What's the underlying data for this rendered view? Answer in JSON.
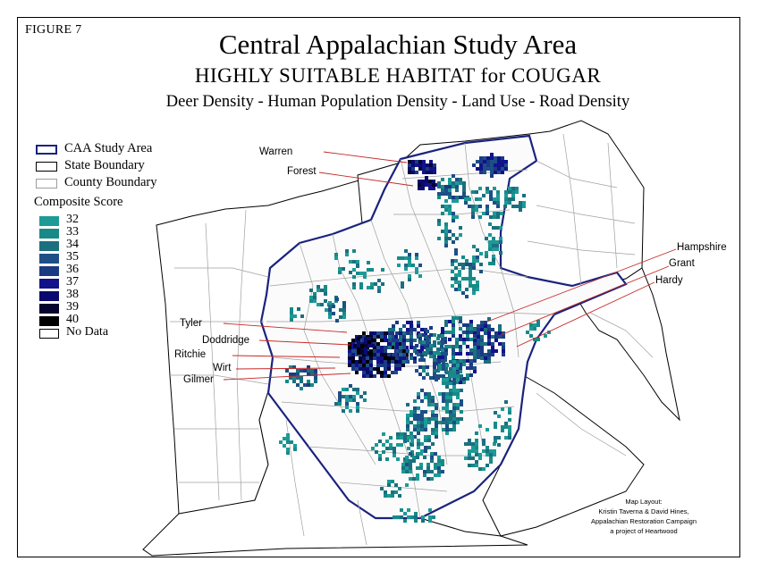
{
  "figure_label": "FIGURE 7",
  "title": "Central Appalachian Study Area",
  "subtitle": "HIGHLY SUITABLE HABITAT for COUGAR",
  "criteria": "Deer Density - Human Population Density - Land Use - Road Density",
  "legend": {
    "boundaries": [
      {
        "label": "CAA Study Area",
        "color": "#1a237e"
      },
      {
        "label": "State Boundary",
        "color": "#000000"
      },
      {
        "label": "County Boundary",
        "color": "#9e9e9e"
      }
    ],
    "score_title": "Composite Score",
    "scores": [
      {
        "label": "32",
        "color": "#1e9a96"
      },
      {
        "label": "33",
        "color": "#178a88"
      },
      {
        "label": "34",
        "color": "#1b6f7e"
      },
      {
        "label": "35",
        "color": "#1d4f86"
      },
      {
        "label": "36",
        "color": "#1a3a82"
      },
      {
        "label": "37",
        "color": "#12128a"
      },
      {
        "label": "38",
        "color": "#0a0a6e"
      },
      {
        "label": "39",
        "color": "#050530"
      },
      {
        "label": "40",
        "color": "#000000"
      }
    ],
    "no_data": {
      "label": "No Data",
      "color": "#ffffff"
    }
  },
  "county_labels": [
    {
      "name": "Warren"
    },
    {
      "name": "Forest"
    },
    {
      "name": "Hampshire"
    },
    {
      "name": "Grant"
    },
    {
      "name": "Hardy"
    },
    {
      "name": "Tyler"
    },
    {
      "name": "Doddridge"
    },
    {
      "name": "Ritchie"
    },
    {
      "name": "Wirt"
    },
    {
      "name": "Gilmer"
    }
  ],
  "credit": {
    "heading": "Map Layout:",
    "authors": "Kristin Taverna &  David Hines,",
    "org": "Appalachian Restoration Campaign",
    "project": "a project of Heartwood"
  },
  "colors": {
    "study_area": "#1a237e",
    "state": "#000000",
    "county": "#a0a0a0",
    "leader": "#c62828"
  }
}
